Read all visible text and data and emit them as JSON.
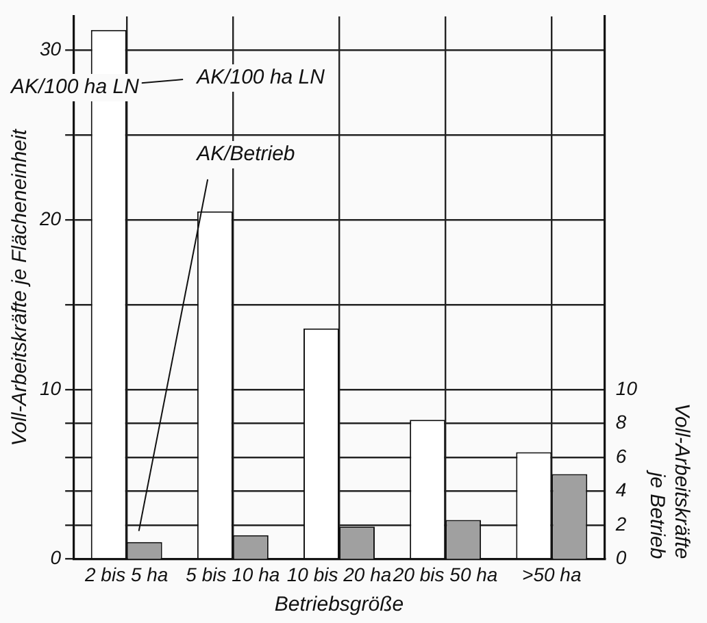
{
  "chart_data": {
    "type": "bar",
    "categories": [
      "2 bis 5 ha",
      "5 bis 10 ha",
      "10 bis 20 ha",
      "20 bis 50 ha",
      ">50 ha"
    ],
    "series": [
      {
        "name": "AK/100 ha LN",
        "color": "#ffffff",
        "values": [
          31.2,
          20.5,
          13.6,
          8.2,
          6.3
        ]
      },
      {
        "name": "AK/Betrieb",
        "color": "#a0a0a0",
        "axis": "y2",
        "values": [
          1.0,
          1.4,
          1.9,
          2.3,
          5.0
        ]
      }
    ],
    "xlabel": "Betriebsgröße",
    "ylabel": "Voll-Arbeitskräfte je Flächeneinheit",
    "y2label": "Voll-Arbeitskräfte je Betrieb",
    "annotations": [
      "AK/100 ha LN"
    ],
    "ylim": [
      0,
      32
    ],
    "yticks": [
      0,
      {
        "value": 2,
        "label": null
      },
      {
        "value": 4,
        "label": null
      },
      {
        "value": 6,
        "label": null
      },
      {
        "value": 8,
        "label": null
      },
      10,
      {
        "value": 15,
        "label": null
      },
      20,
      {
        "value": 25,
        "label": null
      },
      30
    ],
    "y2lim": [
      0,
      32
    ],
    "y2ticks": [
      0,
      2,
      4,
      6,
      8,
      10
    ],
    "grid": true,
    "legend": false
  }
}
